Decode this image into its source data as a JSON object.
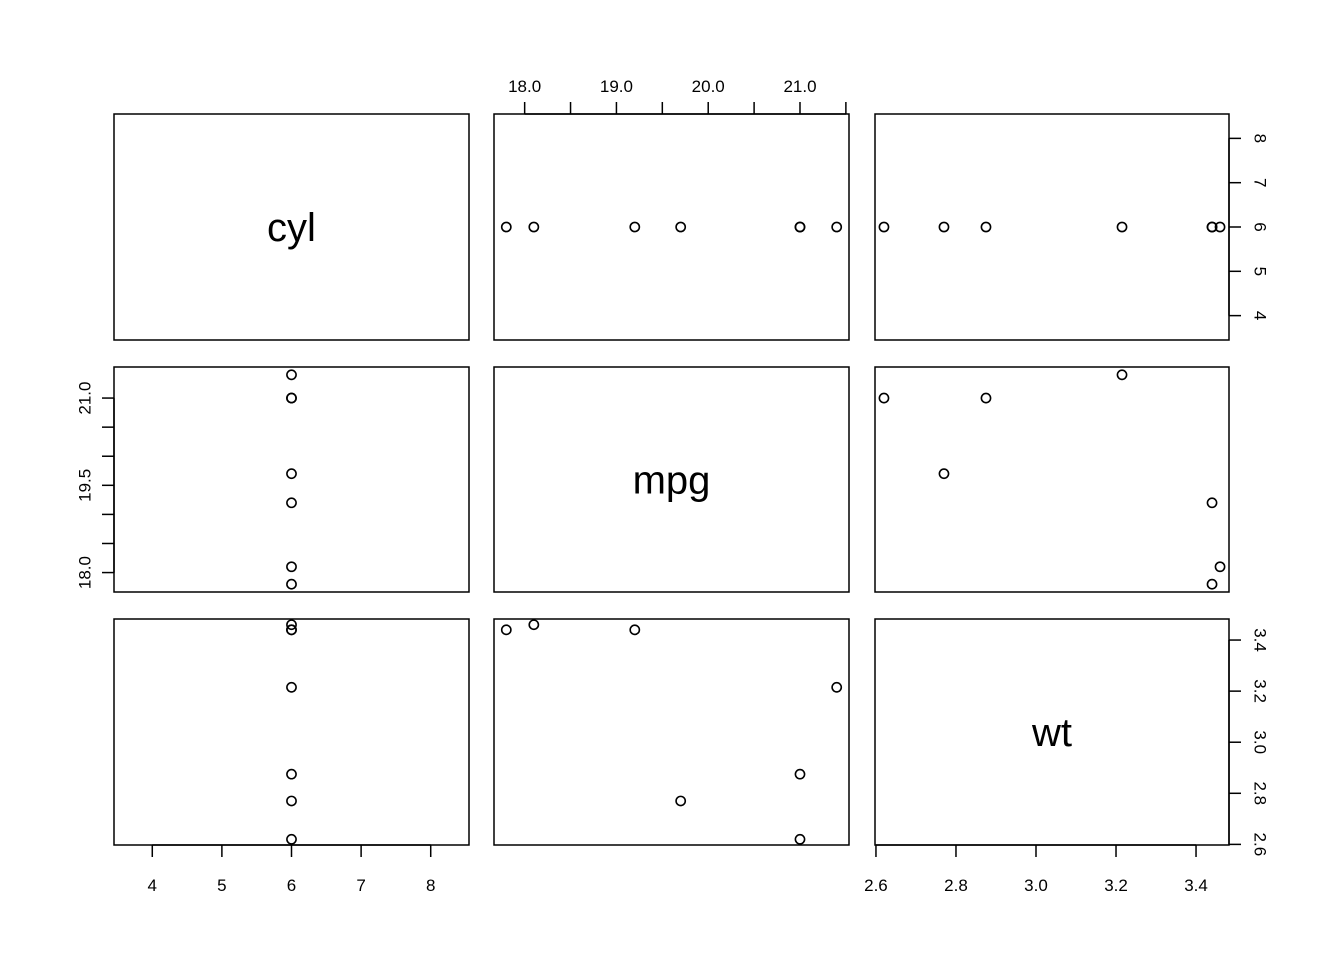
{
  "chart_data": {
    "type": "scatter",
    "title": "",
    "variables": [
      "cyl",
      "mpg",
      "wt"
    ],
    "grid": false,
    "axes": {
      "cyl": {
        "range": [
          3.45,
          8.55
        ],
        "ticks": [
          4,
          5,
          6,
          7,
          8
        ],
        "tick_labels": [
          "4",
          "5",
          "6",
          "7",
          "8"
        ]
      },
      "mpg": {
        "range": [
          17.666,
          21.534
        ],
        "ticks": [
          18.0,
          18.5,
          19.0,
          19.5,
          20.0,
          20.5,
          21.0,
          21.5
        ],
        "tick_labels": [
          "18.0",
          "",
          "19.0",
          "",
          "20.0",
          "",
          "21.0",
          ""
        ]
      },
      "mpg_left": {
        "ticks": [
          18.0,
          18.5,
          19.0,
          19.5,
          20.0,
          20.5,
          21.0
        ],
        "tick_labels": [
          "18.0",
          "",
          "",
          "19.5",
          "",
          "",
          "21.0"
        ]
      },
      "wt": {
        "range": [
          2.5976,
          3.4824
        ],
        "ticks": [
          2.6,
          2.8,
          3.0,
          3.2,
          3.4
        ],
        "tick_labels": [
          "2.6",
          "2.8",
          "3.0",
          "3.2",
          "3.4"
        ]
      }
    },
    "observations": [
      {
        "cyl": 6,
        "mpg": 21.0,
        "wt": 2.62
      },
      {
        "cyl": 6,
        "mpg": 21.0,
        "wt": 2.875
      },
      {
        "cyl": 6,
        "mpg": 21.4,
        "wt": 3.215
      },
      {
        "cyl": 6,
        "mpg": 18.1,
        "wt": 3.46
      },
      {
        "cyl": 6,
        "mpg": 19.2,
        "wt": 3.44
      },
      {
        "cyl": 6,
        "mpg": 17.8,
        "wt": 3.44
      },
      {
        "cyl": 6,
        "mpg": 19.7,
        "wt": 2.77
      }
    ]
  }
}
